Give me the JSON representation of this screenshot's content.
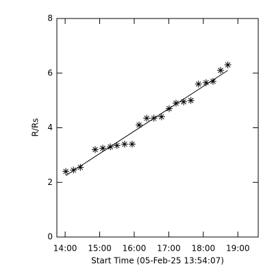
{
  "chart_data": {
    "type": "scatter",
    "marker": "asterisk",
    "color": "#000000",
    "xlabel": "Start Time (05-Feb-25 13:54:07)",
    "ylabel": "R/Rs",
    "x": [
      14.02,
      14.24,
      14.44,
      14.87,
      15.09,
      15.31,
      15.5,
      15.72,
      15.94,
      16.14,
      16.36,
      16.57,
      16.79,
      17.01,
      17.21,
      17.43,
      17.64,
      17.86,
      18.08,
      18.28,
      18.5,
      18.71
    ],
    "values": [
      2.4,
      2.45,
      2.55,
      3.2,
      3.25,
      3.3,
      3.35,
      3.4,
      3.4,
      4.1,
      4.35,
      4.35,
      4.4,
      4.7,
      4.9,
      4.95,
      5.0,
      5.6,
      5.65,
      5.7,
      6.1,
      6.3
    ],
    "fit": {
      "x": [
        14.02,
        18.71
      ],
      "y": [
        2.25,
        6.1
      ]
    },
    "xlim": [
      13.76,
      19.59
    ],
    "xticks": [
      {
        "value": 14,
        "label": "14:00"
      },
      {
        "value": 15,
        "label": "15:00"
      },
      {
        "value": 16,
        "label": "16:00"
      },
      {
        "value": 17,
        "label": "17:00"
      },
      {
        "value": 18,
        "label": "18:00"
      },
      {
        "value": 19,
        "label": "19:00"
      }
    ],
    "ylim": [
      0,
      8
    ],
    "yticks": [
      0,
      2,
      4,
      6,
      8
    ]
  }
}
